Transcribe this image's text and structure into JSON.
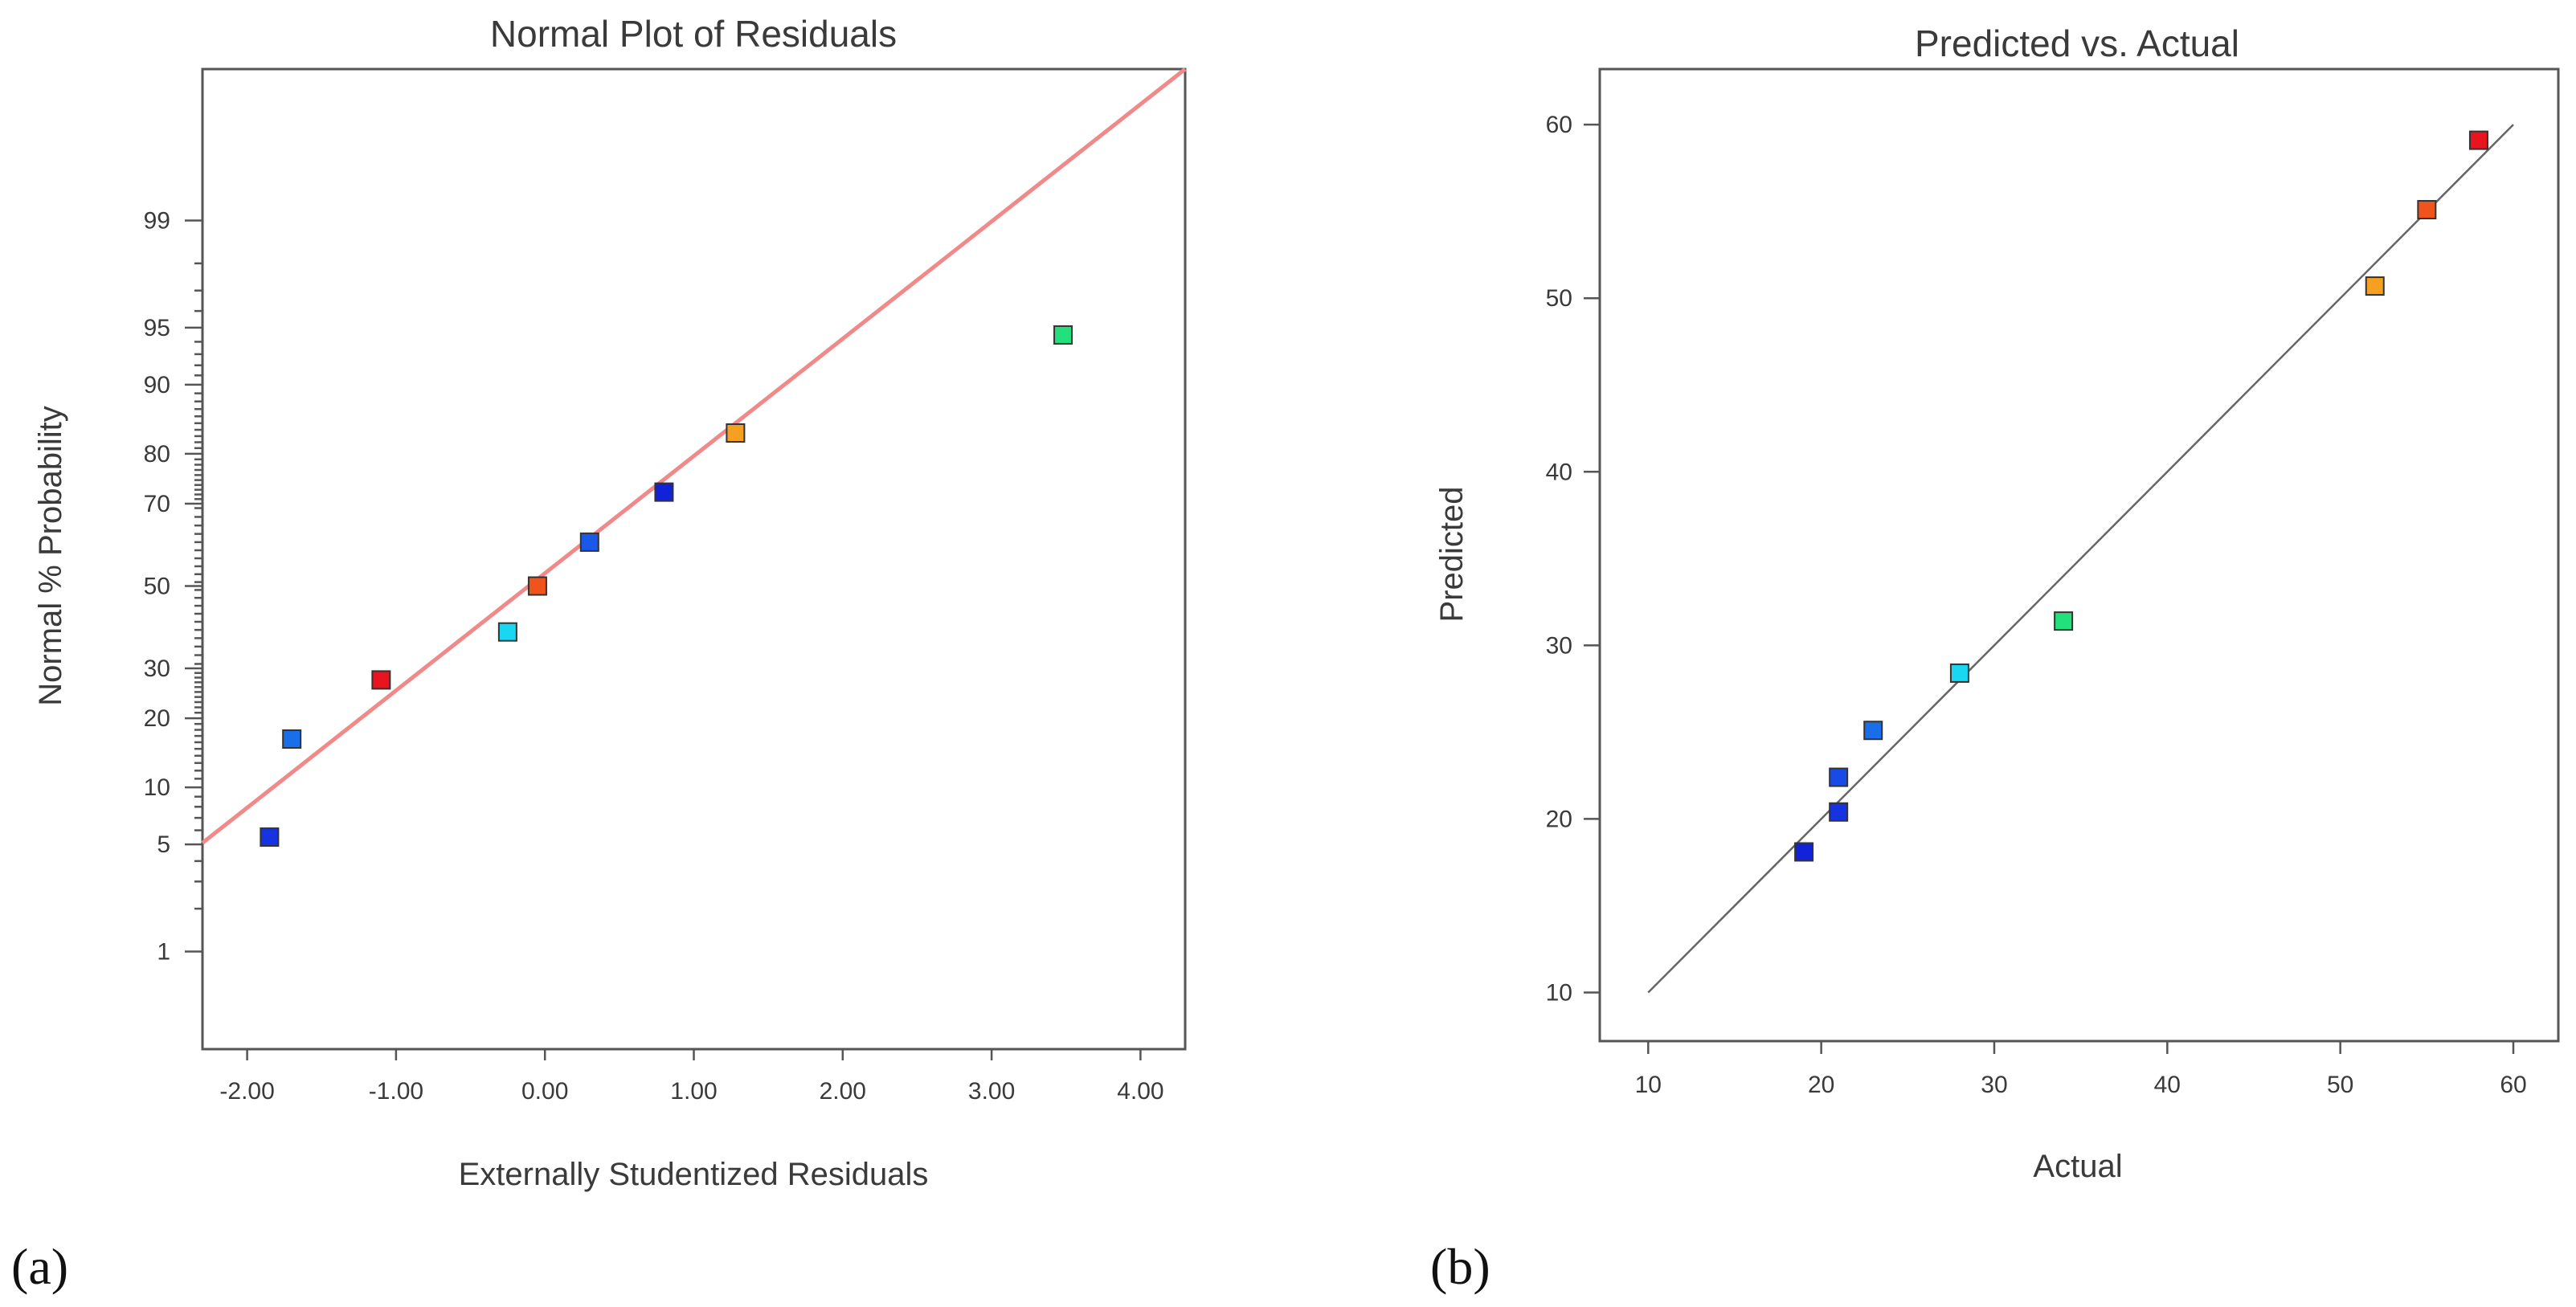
{
  "chart_data": [
    {
      "type": "scatter",
      "panel_label": "(a)",
      "title": "Normal Plot of Residuals",
      "xlabel": "Externally Studentized Residuals",
      "ylabel": "Normal % Probability",
      "xlim": [
        -2.3,
        4.3
      ],
      "ylim_percent": [
        0.16,
        99.95
      ],
      "y_scale": "normal-probability",
      "x_ticks": [
        "-2.00",
        "-1.00",
        "0.00",
        "1.00",
        "2.00",
        "3.00",
        "4.00"
      ],
      "x_tick_values": [
        -2,
        -1,
        0,
        1,
        2,
        3,
        4
      ],
      "y_ticks": [
        "1",
        "5",
        "10",
        "20",
        "30",
        "50",
        "70",
        "80",
        "90",
        "95",
        "99"
      ],
      "y_tick_values": [
        1,
        5,
        10,
        20,
        30,
        50,
        70,
        80,
        90,
        95,
        99
      ],
      "reference_line": {
        "x": [
          -2.3,
          4.3
        ],
        "y_percent": [
          5.1,
          99.95
        ],
        "color": "#f08a8a"
      },
      "points": [
        {
          "x": -1.85,
          "y": 5.5,
          "color": "#1533e0"
        },
        {
          "x": -1.7,
          "y": 16.5,
          "color": "#1a6ee8"
        },
        {
          "x": -1.1,
          "y": 27.5,
          "color": "#e8141e"
        },
        {
          "x": -0.25,
          "y": 38.5,
          "color": "#19d7f0"
        },
        {
          "x": -0.05,
          "y": 50,
          "color": "#f0531c"
        },
        {
          "x": 0.3,
          "y": 61,
          "color": "#1a58e8"
        },
        {
          "x": 0.8,
          "y": 72.5,
          "color": "#1222d8"
        },
        {
          "x": 1.28,
          "y": 83.5,
          "color": "#f5a020"
        },
        {
          "x": 3.48,
          "y": 94.5,
          "color": "#22e07a"
        }
      ]
    },
    {
      "type": "scatter",
      "panel_label": "(b)",
      "title": "Predicted vs. Actual",
      "xlabel": "Actual",
      "ylabel": "Predicted",
      "xlim": [
        7.2,
        62.6
      ],
      "ylim": [
        7.2,
        63.2
      ],
      "x_ticks": [
        "10",
        "20",
        "30",
        "40",
        "50",
        "60"
      ],
      "x_tick_values": [
        10,
        20,
        30,
        40,
        50,
        60
      ],
      "y_ticks": [
        "10",
        "20",
        "30",
        "40",
        "50",
        "60"
      ],
      "y_tick_values": [
        10,
        20,
        30,
        40,
        50,
        60
      ],
      "reference_line": {
        "x": [
          10,
          60
        ],
        "y": [
          10,
          60
        ],
        "color": "#666666"
      },
      "points": [
        {
          "x": 19,
          "y": 18.1,
          "color": "#1222d8"
        },
        {
          "x": 21,
          "y": 20.4,
          "color": "#1533e0"
        },
        {
          "x": 21,
          "y": 22.4,
          "color": "#1a4ae6"
        },
        {
          "x": 23,
          "y": 25.1,
          "color": "#1a6ee8"
        },
        {
          "x": 28,
          "y": 28.4,
          "color": "#19d7f0"
        },
        {
          "x": 34,
          "y": 31.4,
          "color": "#22e07a"
        },
        {
          "x": 52,
          "y": 50.7,
          "color": "#f5a020"
        },
        {
          "x": 55,
          "y": 55.1,
          "color": "#f0531c"
        },
        {
          "x": 58,
          "y": 59.1,
          "color": "#e8141e"
        }
      ]
    }
  ]
}
